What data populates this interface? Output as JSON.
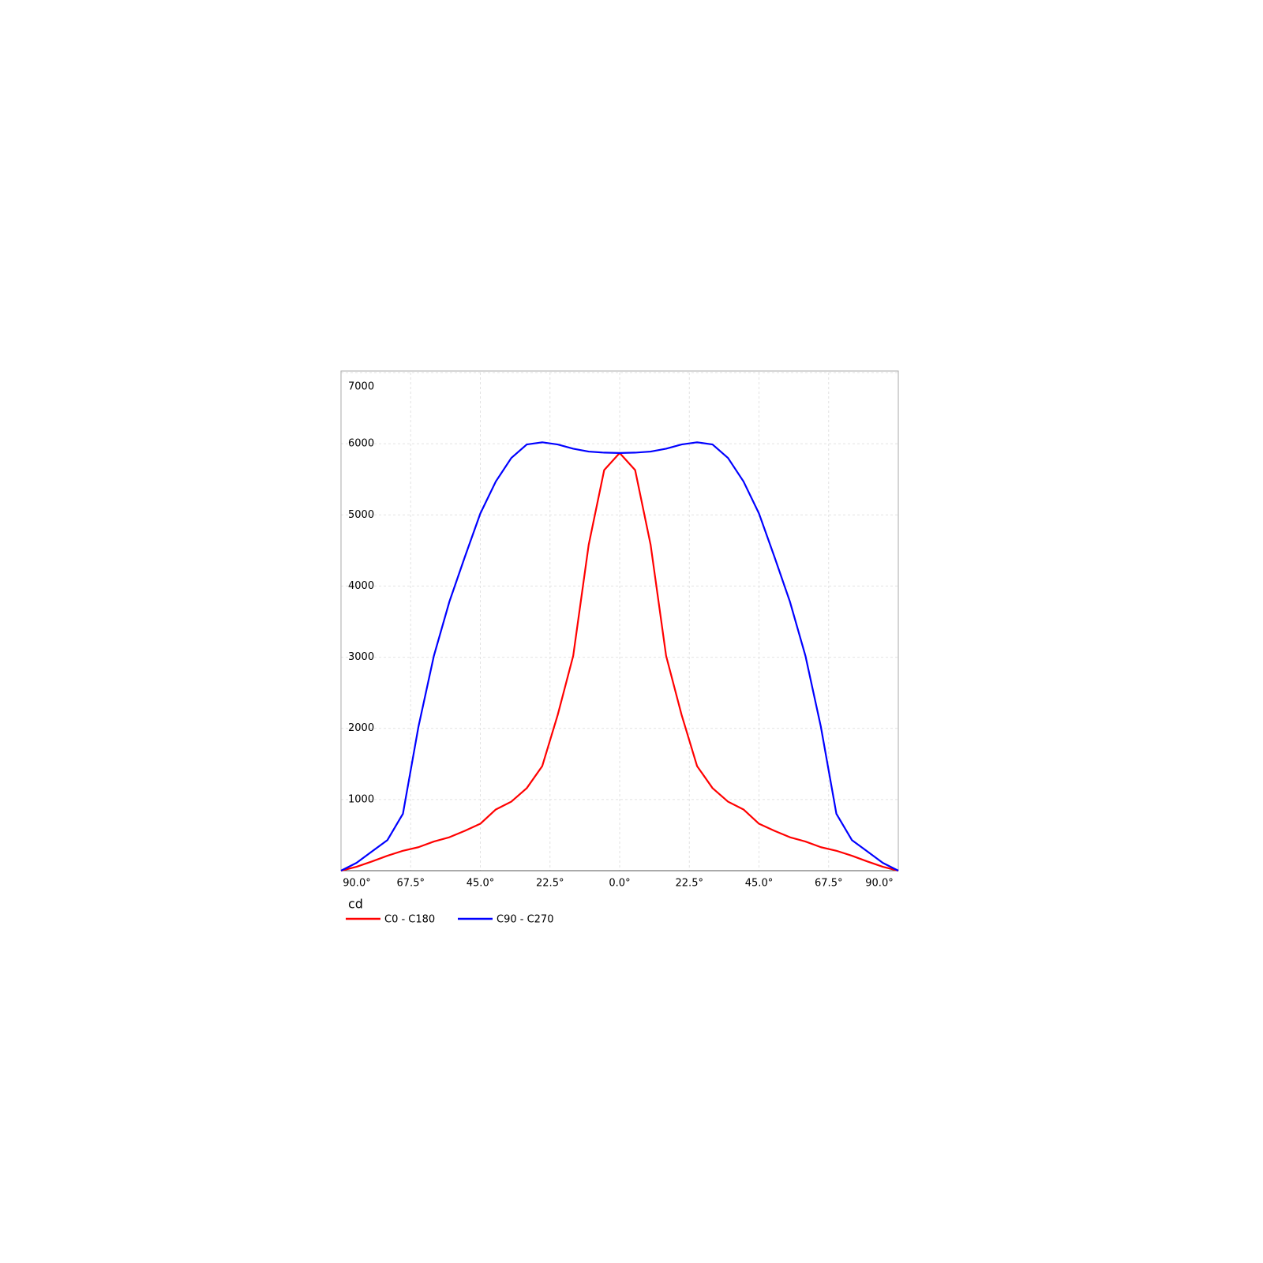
{
  "chart_data": {
    "type": "line",
    "ylabel": "cd",
    "x": [
      -90,
      -85,
      -80,
      -75,
      -70,
      -65,
      -60,
      -55,
      -50,
      -45,
      -40,
      -35,
      -30,
      -25,
      -20,
      -15,
      -10,
      -5,
      0,
      5,
      10,
      15,
      20,
      25,
      30,
      35,
      40,
      45,
      50,
      55,
      60,
      65,
      70,
      75,
      80,
      85,
      90
    ],
    "series": [
      {
        "name": "C0 - C180",
        "color": "#ff0000",
        "values": [
          0,
          55,
          130,
          210,
          280,
          330,
          410,
          470,
          560,
          660,
          860,
          970,
          1160,
          1470,
          2190,
          3020,
          4580,
          5630,
          5870,
          5630,
          4580,
          3020,
          2190,
          1470,
          1160,
          970,
          860,
          660,
          560,
          470,
          410,
          330,
          280,
          210,
          130,
          55,
          0
        ]
      },
      {
        "name": "C90 - C270",
        "color": "#0000ff",
        "values": [
          0,
          110,
          270,
          430,
          800,
          2020,
          3020,
          3780,
          4410,
          5020,
          5470,
          5800,
          5990,
          6020,
          5990,
          5930,
          5890,
          5875,
          5870,
          5875,
          5890,
          5930,
          5990,
          6020,
          5990,
          5800,
          5470,
          5020,
          4410,
          3780,
          3020,
          2020,
          800,
          430,
          270,
          110,
          0
        ]
      }
    ],
    "xlim": [
      -90,
      90
    ],
    "xticks": [
      {
        "value": -90,
        "label": "90.0°"
      },
      {
        "value": -67.5,
        "label": "67.5°"
      },
      {
        "value": -45,
        "label": "45.0°"
      },
      {
        "value": -22.5,
        "label": "22.5°"
      },
      {
        "value": 0,
        "label": "0.0°"
      },
      {
        "value": 22.5,
        "label": "22.5°"
      },
      {
        "value": 45,
        "label": "45.0°"
      },
      {
        "value": 67.5,
        "label": "67.5°"
      },
      {
        "value": 90,
        "label": "90.0°"
      }
    ],
    "ylim": [
      0,
      7000
    ],
    "yticks": [
      1000,
      2000,
      3000,
      4000,
      5000,
      6000,
      7000
    ],
    "grid": true
  }
}
